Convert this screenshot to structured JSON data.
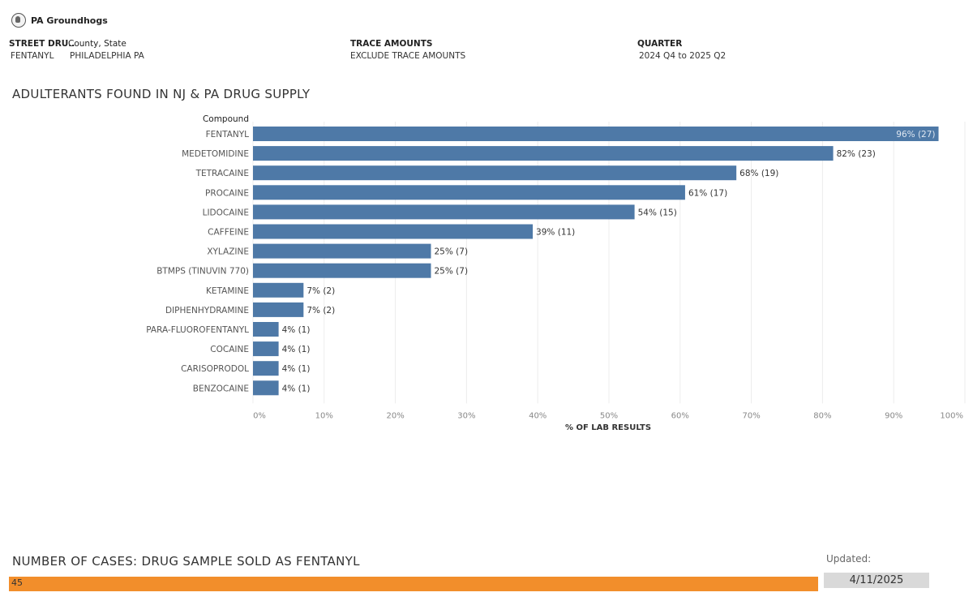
{
  "brand": {
    "name": "PA Groundhogs"
  },
  "filters": {
    "street_drug": {
      "label": "STREET DRU..",
      "value": "FENTANYL"
    },
    "county_state": {
      "label": "County, State",
      "value": "PHILADELPHIA PA"
    },
    "trace": {
      "label": "TRACE AMOUNTS",
      "value": "EXCLUDE TRACE AMOUNTS"
    },
    "quarter": {
      "label": "QUARTER",
      "value": "2024 Q4 to 2025 Q2"
    }
  },
  "chart_title": "ADULTERANTS FOUND IN NJ & PA DRUG SUPPLY",
  "chart_data": {
    "type": "bar",
    "orientation": "horizontal",
    "title": "ADULTERANTS FOUND IN NJ & PA DRUG SUPPLY",
    "category_header": "Compound",
    "xlabel": "% OF LAB RESULTS",
    "xlim": [
      0,
      100
    ],
    "xticks": [
      "0%",
      "10%",
      "20%",
      "30%",
      "40%",
      "50%",
      "60%",
      "70%",
      "80%",
      "90%",
      "100%"
    ],
    "bar_color": "#4e79a7",
    "categories": [
      "FENTANYL",
      "MEDETOMIDINE",
      "TETRACAINE",
      "PROCAINE",
      "LIDOCAINE",
      "CAFFEINE",
      "XYLAZINE",
      "BTMPS (TINUVIN 770)",
      "KETAMINE",
      "DIPHENHYDRAMINE",
      "PARA-FLUOROFENTANYL",
      "COCAINE",
      "CARISOPRODOL",
      "BENZOCAINE"
    ],
    "values": [
      96.3,
      81.5,
      67.9,
      60.7,
      53.6,
      39.3,
      25,
      25,
      7.1,
      7.1,
      3.6,
      3.6,
      3.6,
      3.6
    ],
    "labels": [
      "96% (27)",
      "82% (23)",
      "68% (19)",
      "61% (17)",
      "54% (15)",
      "39% (11)",
      "25% (7)",
      "25% (7)",
      "7% (2)",
      "7% (2)",
      "4% (1)",
      "4% (1)",
      "4% (1)",
      "4% (1)"
    ]
  },
  "cases": {
    "title": "NUMBER OF CASES: DRUG SAMPLE SOLD AS  FENTANYL",
    "value": "45",
    "color": "#f28e2b"
  },
  "updated": {
    "label": "Updated:",
    "value": "4/11/2025"
  }
}
